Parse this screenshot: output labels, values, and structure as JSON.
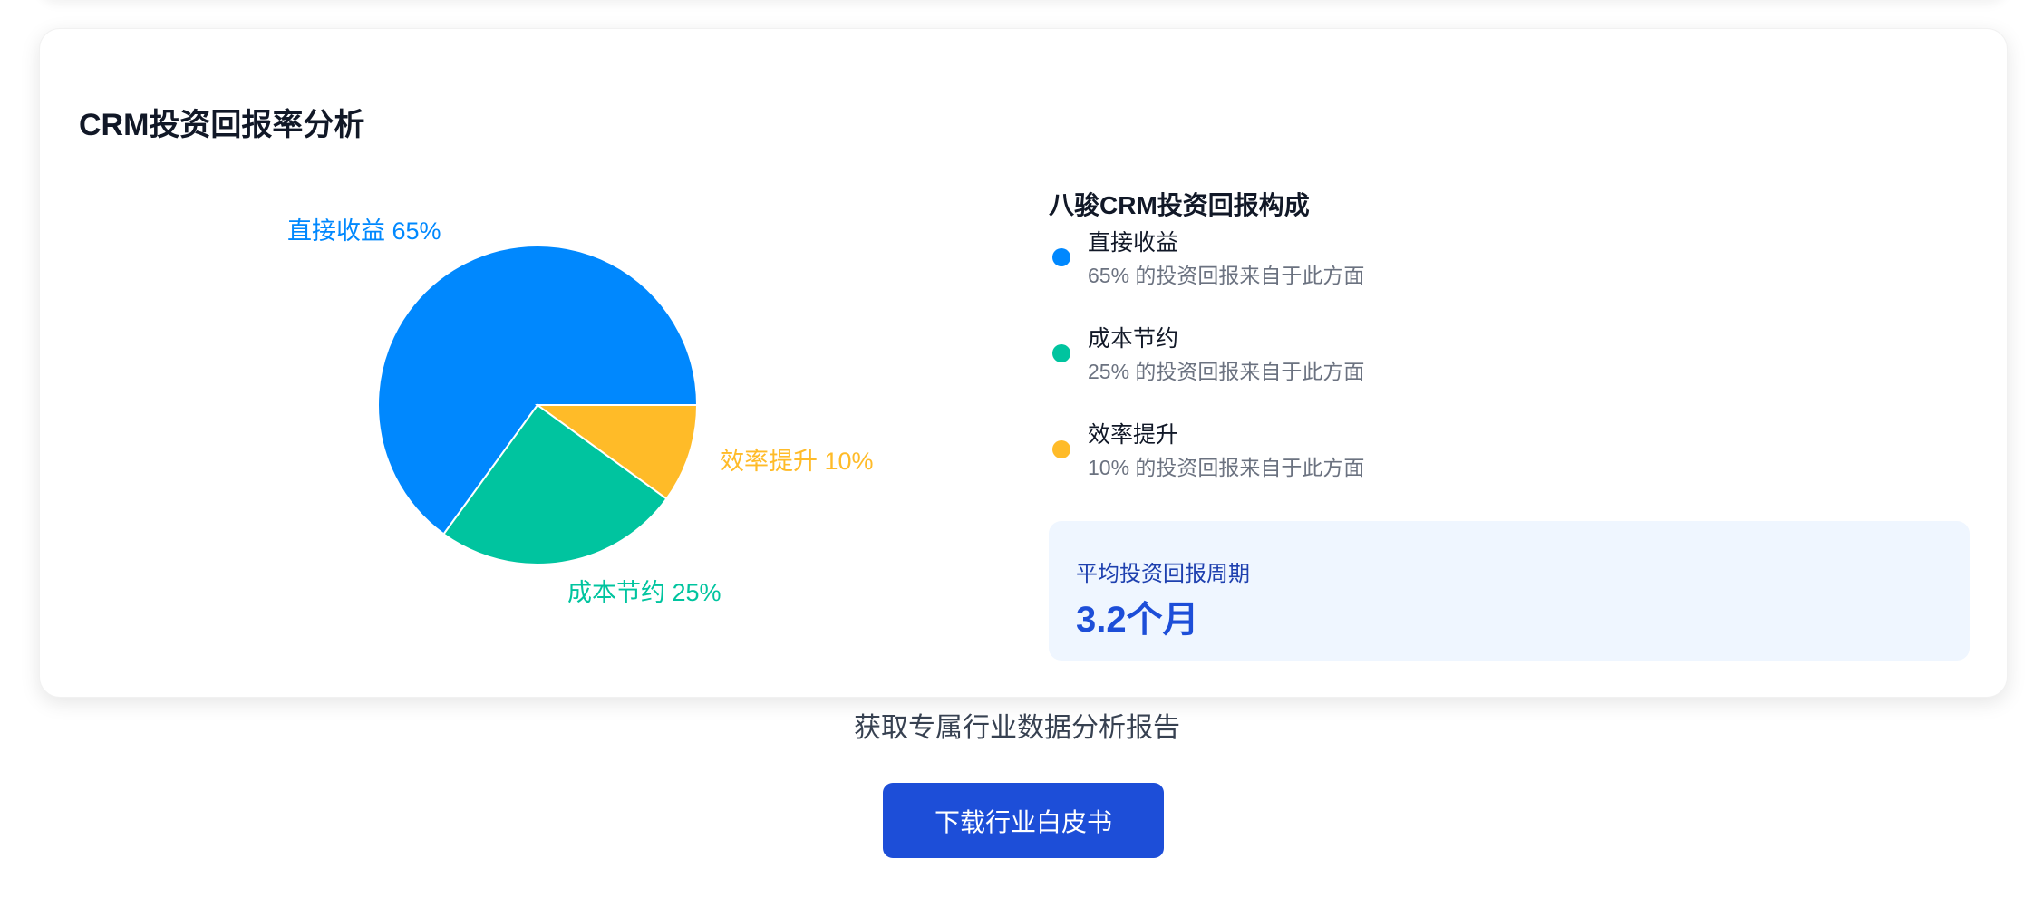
{
  "card": {
    "title": "CRM投资回报率分析",
    "breakdown_title": "八骏CRM投资回报构成",
    "legend": [
      {
        "label": "直接收益",
        "description": "65% 的投资回报来自于此方面",
        "color": "#0088FE"
      },
      {
        "label": "成本节约",
        "description": "25% 的投资回报来自于此方面",
        "color": "#00C49F"
      },
      {
        "label": "效率提升",
        "description": "10% 的投资回报来自于此方面",
        "color": "#FFBB28"
      }
    ],
    "payback": {
      "label": "平均投资回报周期",
      "value": "3.2个月"
    }
  },
  "chart_data": {
    "type": "pie",
    "categories": [
      "直接收益",
      "成本节约",
      "效率提升"
    ],
    "values": [
      65,
      25,
      10
    ],
    "labels": [
      "直接收益 65%",
      "成本节约 25%",
      "效率提升 10%"
    ],
    "colors": [
      "#0088FE",
      "#00C49F",
      "#FFBB28"
    ]
  },
  "footer": {
    "cta_text": "获取专属行业数据分析报告",
    "download_button": "下载行业白皮书"
  }
}
